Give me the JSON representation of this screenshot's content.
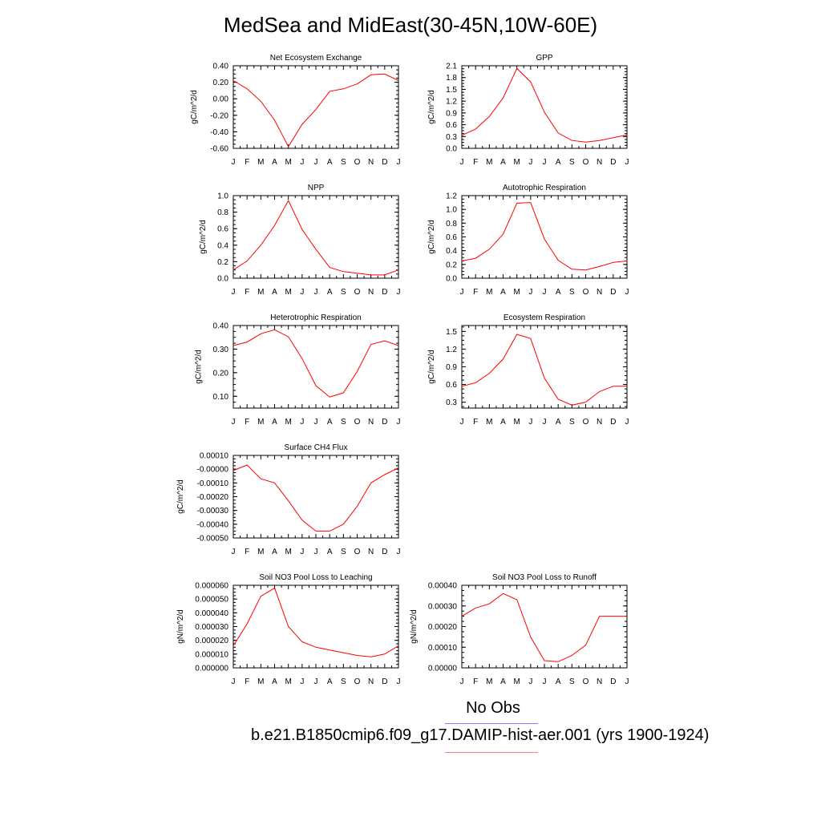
{
  "page": {
    "title": "MedSea and MidEast(30-45N,10W-60E)",
    "legend": [
      {
        "label": "No Obs",
        "color": "#8080ff"
      },
      {
        "label": "b.e21.B1850cmip6.f09_g17.DAMIP-hist-aer.001 (yrs 1900-1924)",
        "color": "#ff8080"
      }
    ]
  },
  "chart_data": [
    {
      "type": "line",
      "title": "Net Ecosystem Exchange",
      "xlabel": "",
      "ylabel": "gC/m^2/d",
      "categories": [
        "J",
        "F",
        "M",
        "A",
        "M",
        "J",
        "J",
        "A",
        "S",
        "O",
        "N",
        "D",
        "J"
      ],
      "yticks": [
        "0.40",
        "0.20",
        "0.00",
        "-0.20",
        "-0.40",
        "-0.60"
      ],
      "ylim": [
        -0.6,
        0.4
      ],
      "series": [
        {
          "color": "#ff0000",
          "values": [
            0.22,
            0.12,
            -0.03,
            -0.26,
            -0.58,
            -0.31,
            -0.13,
            0.09,
            0.12,
            0.18,
            0.29,
            0.3,
            0.22
          ]
        }
      ]
    },
    {
      "type": "line",
      "title": "GPP",
      "xlabel": "",
      "ylabel": "gC/m^2/d",
      "categories": [
        "J",
        "F",
        "M",
        "A",
        "M",
        "J",
        "J",
        "A",
        "S",
        "O",
        "N",
        "D",
        "J"
      ],
      "yticks": [
        "2.1",
        "1.8",
        "1.5",
        "1.2",
        "0.9",
        "0.6",
        "0.3",
        "0.0"
      ],
      "ylim": [
        0.0,
        2.1
      ],
      "series": [
        {
          "color": "#ff0000",
          "values": [
            0.33,
            0.49,
            0.81,
            1.28,
            2.03,
            1.69,
            0.92,
            0.39,
            0.2,
            0.16,
            0.2,
            0.27,
            0.34
          ]
        }
      ]
    },
    {
      "type": "line",
      "title": "NPP",
      "xlabel": "",
      "ylabel": "gC/m^2/d",
      "categories": [
        "J",
        "F",
        "M",
        "A",
        "M",
        "J",
        "J",
        "A",
        "S",
        "O",
        "N",
        "D",
        "J"
      ],
      "yticks": [
        "1.0",
        "0.8",
        "0.6",
        "0.4",
        "0.2",
        "0.0"
      ],
      "ylim": [
        0.0,
        1.0
      ],
      "series": [
        {
          "color": "#ff0000",
          "values": [
            0.1,
            0.21,
            0.4,
            0.64,
            0.94,
            0.59,
            0.35,
            0.13,
            0.08,
            0.06,
            0.04,
            0.04,
            0.1
          ]
        }
      ]
    },
    {
      "type": "line",
      "title": "Autotrophic Respiration",
      "xlabel": "",
      "ylabel": "gC/m^2/d",
      "categories": [
        "J",
        "F",
        "M",
        "A",
        "M",
        "J",
        "J",
        "A",
        "S",
        "O",
        "N",
        "D",
        "J"
      ],
      "yticks": [
        "1.2",
        "1.0",
        "0.8",
        "0.6",
        "0.4",
        "0.2",
        "0.0"
      ],
      "ylim": [
        0.0,
        1.2
      ],
      "series": [
        {
          "color": "#ff0000",
          "values": [
            0.25,
            0.29,
            0.42,
            0.64,
            1.09,
            1.1,
            0.57,
            0.26,
            0.13,
            0.12,
            0.17,
            0.23,
            0.25
          ]
        }
      ]
    },
    {
      "type": "line",
      "title": "Heterotrophic Respiration",
      "xlabel": "",
      "ylabel": "gC/m^2/d",
      "categories": [
        "J",
        "F",
        "M",
        "A",
        "M",
        "J",
        "J",
        "A",
        "S",
        "O",
        "N",
        "D",
        "J"
      ],
      "yticks": [
        "0.40",
        "0.30",
        "0.20",
        "0.10"
      ],
      "ylim": [
        0.05,
        0.4
      ],
      "series": [
        {
          "color": "#ff0000",
          "values": [
            0.315,
            0.33,
            0.365,
            0.382,
            0.352,
            0.26,
            0.145,
            0.097,
            0.115,
            0.205,
            0.32,
            0.335,
            0.315
          ]
        }
      ]
    },
    {
      "type": "line",
      "title": "Ecosystem Respiration",
      "xlabel": "",
      "ylabel": "gC/m^2/d",
      "categories": [
        "J",
        "F",
        "M",
        "A",
        "M",
        "J",
        "J",
        "A",
        "S",
        "O",
        "N",
        "D",
        "J"
      ],
      "yticks": [
        "1.5",
        "1.2",
        "0.9",
        "0.6",
        "0.3"
      ],
      "ylim": [
        0.2,
        1.6
      ],
      "series": [
        {
          "color": "#ff0000",
          "values": [
            0.57,
            0.63,
            0.79,
            1.03,
            1.45,
            1.38,
            0.71,
            0.35,
            0.25,
            0.3,
            0.48,
            0.57,
            0.57
          ]
        }
      ]
    },
    {
      "type": "line",
      "title": "Surface CH4 Flux",
      "xlabel": "",
      "ylabel": "gC/m^2/d",
      "categories": [
        "J",
        "F",
        "M",
        "A",
        "M",
        "J",
        "J",
        "A",
        "S",
        "O",
        "N",
        "D",
        "J"
      ],
      "yticks": [
        "0.00010",
        "-0.00000",
        "-0.00010",
        "-0.00020",
        "-0.00030",
        "-0.00040",
        "-0.00050"
      ],
      "ylim": [
        -0.0005,
        0.0001
      ],
      "series": [
        {
          "color": "#ff0000",
          "values": [
            -1e-05,
            3e-05,
            -7e-05,
            -0.0001,
            -0.00023,
            -0.00037,
            -0.00045,
            -0.00045,
            -0.0004,
            -0.00027,
            -0.0001,
            -4e-05,
            1e-05
          ]
        }
      ]
    },
    {
      "type": "line",
      "title": "Soil NO3 Pool Loss to Leaching",
      "xlabel": "",
      "ylabel": "gN/m^2/d",
      "categories": [
        "J",
        "F",
        "M",
        "A",
        "M",
        "J",
        "J",
        "A",
        "S",
        "O",
        "N",
        "D",
        "J"
      ],
      "yticks": [
        "0.000060",
        "0.000050",
        "0.000040",
        "0.000030",
        "0.000020",
        "0.000010",
        "0.000000"
      ],
      "ylim": [
        0.0,
        6e-05
      ],
      "series": [
        {
          "color": "#ff0000",
          "values": [
            1.6e-05,
            3.2e-05,
            5.2e-05,
            5.8e-05,
            3e-05,
            1.9e-05,
            1.5e-05,
            1.3e-05,
            1.1e-05,
            9e-06,
            8e-06,
            1e-05,
            1.6e-05
          ]
        }
      ]
    },
    {
      "type": "line",
      "title": "Soil NO3 Pool Loss to Runoff",
      "xlabel": "",
      "ylabel": "gN/m^2/d",
      "categories": [
        "J",
        "F",
        "M",
        "A",
        "M",
        "J",
        "J",
        "A",
        "S",
        "O",
        "N",
        "D",
        "J"
      ],
      "yticks": [
        "0.00040",
        "0.00030",
        "0.00020",
        "0.00010",
        "0.00000"
      ],
      "ylim": [
        0.0,
        0.0004
      ],
      "series": [
        {
          "color": "#ff0000",
          "values": [
            0.00025,
            0.00029,
            0.00031,
            0.00036,
            0.00033,
            0.00015,
            3.5e-05,
            3e-05,
            6e-05,
            0.00011,
            0.00025,
            0.00025,
            0.00025
          ]
        }
      ]
    }
  ]
}
